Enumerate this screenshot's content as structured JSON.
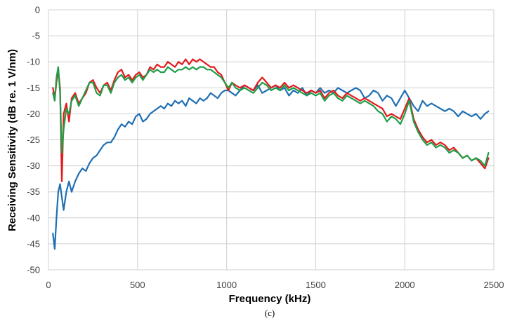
{
  "chart_data": {
    "type": "line",
    "title": "",
    "xlabel": "Frequency  (kHz)",
    "ylabel": "Receiving Sensitivity (dB re. 1 V/nm)",
    "caption": "(c)",
    "xlim": [
      0,
      2500
    ],
    "ylim": [
      -50,
      0
    ],
    "xticks": [
      0,
      500,
      1000,
      1500,
      2000,
      2500
    ],
    "yticks": [
      0,
      -5,
      -10,
      -15,
      -20,
      -25,
      -30,
      -35,
      -40,
      -45,
      -50
    ],
    "grid": true,
    "legend": "none",
    "series": [
      {
        "color": "#1f6fb4",
        "x": [
          25,
          35,
          45,
          55,
          65,
          75,
          85,
          100,
          115,
          130,
          150,
          170,
          190,
          210,
          230,
          250,
          270,
          290,
          310,
          330,
          350,
          370,
          390,
          410,
          430,
          450,
          470,
          490,
          510,
          530,
          550,
          570,
          590,
          610,
          630,
          650,
          670,
          690,
          710,
          730,
          750,
          770,
          790,
          810,
          830,
          850,
          870,
          890,
          910,
          930,
          950,
          970,
          990,
          1010,
          1030,
          1050,
          1075,
          1100,
          1125,
          1150,
          1175,
          1200,
          1225,
          1250,
          1275,
          1300,
          1325,
          1350,
          1375,
          1400,
          1425,
          1450,
          1475,
          1500,
          1525,
          1550,
          1575,
          1600,
          1625,
          1650,
          1675,
          1700,
          1725,
          1750,
          1775,
          1800,
          1825,
          1850,
          1875,
          1900,
          1925,
          1950,
          1975,
          2000,
          2025,
          2050,
          2075,
          2100,
          2125,
          2150,
          2175,
          2200,
          2225,
          2250,
          2275,
          2300,
          2325,
          2350,
          2375,
          2400,
          2425,
          2450,
          2470
        ],
        "y": [
          -43,
          -46,
          -40,
          -35,
          -33.5,
          -36,
          -38.5,
          -35,
          -33,
          -35,
          -33,
          -31.5,
          -30.5,
          -31,
          -29.5,
          -28.5,
          -28,
          -27,
          -26,
          -25.5,
          -25.5,
          -24.5,
          -23,
          -22,
          -22.5,
          -21.5,
          -22,
          -20.5,
          -20,
          -21.5,
          -21,
          -20,
          -19.5,
          -19,
          -18.5,
          -19,
          -18,
          -18.5,
          -17.5,
          -18,
          -17.5,
          -18.5,
          -17,
          -17.5,
          -18,
          -17,
          -17.5,
          -17,
          -16,
          -16.5,
          -17,
          -16,
          -15.5,
          -15.5,
          -16,
          -16.5,
          -15.5,
          -14.5,
          -15,
          -15.5,
          -14.5,
          -16,
          -15.5,
          -15,
          -14.5,
          -15.5,
          -15,
          -16.5,
          -15.5,
          -16,
          -15,
          -16.5,
          -15.5,
          -16,
          -15,
          -16,
          -15.5,
          -16,
          -15,
          -15.5,
          -16,
          -15.5,
          -15,
          -15.5,
          -17,
          -16.5,
          -15.5,
          -16,
          -17.5,
          -16.5,
          -17,
          -18.5,
          -17,
          -15.5,
          -17,
          -18.5,
          -19.5,
          -17.5,
          -18.5,
          -18,
          -18.5,
          -19,
          -19.5,
          -19,
          -19.5,
          -20.5,
          -19.5,
          -20,
          -20.5,
          -20,
          -21,
          -20,
          -19.5
        ]
      },
      {
        "color": "#e31a1c",
        "x": [
          25,
          35,
          45,
          55,
          65,
          75,
          85,
          100,
          115,
          130,
          150,
          170,
          190,
          210,
          230,
          250,
          270,
          290,
          310,
          330,
          350,
          370,
          390,
          410,
          430,
          450,
          470,
          490,
          510,
          530,
          550,
          570,
          590,
          610,
          630,
          650,
          670,
          690,
          710,
          730,
          750,
          770,
          790,
          810,
          830,
          850,
          870,
          890,
          910,
          930,
          950,
          970,
          990,
          1010,
          1030,
          1050,
          1075,
          1100,
          1125,
          1150,
          1175,
          1200,
          1225,
          1250,
          1275,
          1300,
          1325,
          1350,
          1375,
          1400,
          1425,
          1450,
          1475,
          1500,
          1525,
          1550,
          1575,
          1600,
          1625,
          1650,
          1675,
          1700,
          1725,
          1750,
          1775,
          1800,
          1825,
          1850,
          1875,
          1900,
          1925,
          1950,
          1975,
          2000,
          2025,
          2050,
          2075,
          2100,
          2125,
          2150,
          2175,
          2200,
          2225,
          2250,
          2275,
          2300,
          2325,
          2350,
          2375,
          2400,
          2425,
          2450,
          2470
        ],
        "y": [
          -15,
          -17,
          -14,
          -11.5,
          -15,
          -33,
          -20,
          -18,
          -21.5,
          -17,
          -16,
          -18,
          -17,
          -16,
          -14,
          -13.5,
          -15,
          -16,
          -14.5,
          -14,
          -15.5,
          -13.5,
          -12,
          -11.5,
          -13,
          -12.5,
          -13.5,
          -12.5,
          -12,
          -13,
          -12.5,
          -11,
          -11.5,
          -10.5,
          -11,
          -11,
          -10,
          -10.5,
          -11,
          -10,
          -10.5,
          -9.5,
          -10.5,
          -9.5,
          -10,
          -9.5,
          -10,
          -10.5,
          -11,
          -11,
          -12,
          -12.5,
          -14,
          -15.5,
          -14,
          -14.5,
          -15,
          -14.5,
          -15,
          -15.5,
          -14,
          -13,
          -14,
          -15,
          -14.5,
          -15,
          -14,
          -15,
          -14.5,
          -15,
          -15.5,
          -16,
          -15.5,
          -16,
          -15.5,
          -17,
          -16,
          -15.5,
          -16.5,
          -17,
          -16,
          -16.5,
          -17,
          -17.5,
          -17,
          -17.5,
          -18,
          -18.5,
          -19,
          -20.5,
          -20,
          -20.5,
          -21,
          -19,
          -17,
          -21,
          -23,
          -24.5,
          -25.5,
          -25,
          -26,
          -25.5,
          -26,
          -27,
          -26.5,
          -27.5,
          -28.5,
          -28,
          -29,
          -28.5,
          -29.5,
          -30.5,
          -28.5
        ]
      },
      {
        "color": "#1f9e49",
        "x": [
          25,
          35,
          45,
          55,
          65,
          75,
          85,
          100,
          115,
          130,
          150,
          170,
          190,
          210,
          230,
          250,
          270,
          290,
          310,
          330,
          350,
          370,
          390,
          410,
          430,
          450,
          470,
          490,
          510,
          530,
          550,
          570,
          590,
          610,
          630,
          650,
          670,
          690,
          710,
          730,
          750,
          770,
          790,
          810,
          830,
          850,
          870,
          890,
          910,
          930,
          950,
          970,
          990,
          1010,
          1030,
          1050,
          1075,
          1100,
          1125,
          1150,
          1175,
          1200,
          1225,
          1250,
          1275,
          1300,
          1325,
          1350,
          1375,
          1400,
          1425,
          1450,
          1475,
          1500,
          1525,
          1550,
          1575,
          1600,
          1625,
          1650,
          1675,
          1700,
          1725,
          1750,
          1775,
          1800,
          1825,
          1850,
          1875,
          1900,
          1925,
          1950,
          1975,
          2000,
          2025,
          2050,
          2075,
          2100,
          2125,
          2150,
          2175,
          2200,
          2225,
          2250,
          2275,
          2300,
          2325,
          2350,
          2375,
          2400,
          2425,
          2450,
          2470
        ],
        "y": [
          -16,
          -17.5,
          -13,
          -11,
          -16,
          -27.5,
          -23,
          -19,
          -20,
          -17.5,
          -16.5,
          -18.5,
          -17,
          -15.5,
          -14,
          -14,
          -16,
          -16.5,
          -14.5,
          -14.5,
          -16,
          -14,
          -13,
          -12.5,
          -13.5,
          -13,
          -14,
          -13,
          -12.5,
          -13.5,
          -12.5,
          -11.5,
          -12,
          -11.5,
          -12,
          -12,
          -11,
          -11.5,
          -12,
          -11.5,
          -11.5,
          -11,
          -11.5,
          -11,
          -11.5,
          -11,
          -11,
          -11.5,
          -11.5,
          -12,
          -12.5,
          -13,
          -14,
          -15,
          -14,
          -15,
          -15.5,
          -15,
          -15.5,
          -16,
          -15,
          -14,
          -14.5,
          -15.5,
          -15,
          -15.5,
          -14.5,
          -15.5,
          -15,
          -15.5,
          -16,
          -16.5,
          -16,
          -16.5,
          -16,
          -17.5,
          -16.5,
          -16,
          -17,
          -17.5,
          -16.5,
          -17,
          -17.5,
          -18,
          -17.5,
          -18,
          -18.5,
          -19.5,
          -20,
          -21.5,
          -20.5,
          -21,
          -22,
          -20,
          -17.5,
          -21.5,
          -23.5,
          -25,
          -26,
          -25.5,
          -26.5,
          -26,
          -26.5,
          -27.5,
          -27,
          -27.5,
          -28.5,
          -28,
          -29,
          -28.5,
          -29,
          -30,
          -27.5
        ]
      }
    ]
  }
}
